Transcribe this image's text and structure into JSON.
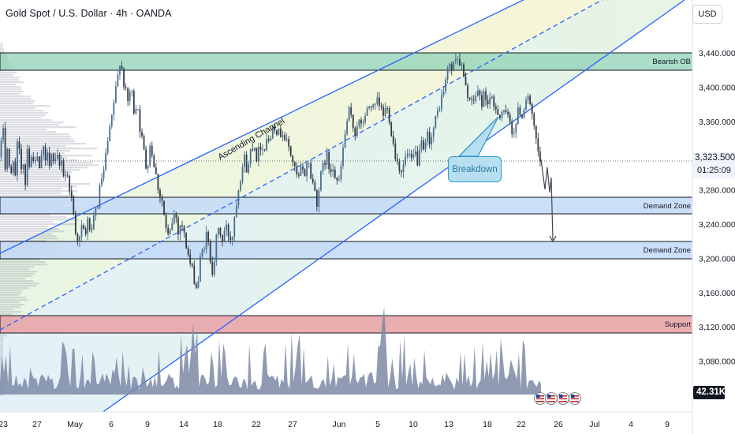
{
  "header": {
    "title": "Gold Spot / U.S. Dollar · 4h · OANDA",
    "currency_button": "USD"
  },
  "price_readout": {
    "last_price": "3,323.500",
    "countdown": "01:25:09",
    "volume_badge": "42.31K"
  },
  "annotations": {
    "channel_label": "Ascending Channel",
    "breakdown_label": "Breakdown",
    "bearish_ob": "Bearish OB",
    "demand_zone_1": "Demand Zone",
    "demand_zone_2": "Demand Zone",
    "support": "Support"
  },
  "colors": {
    "channel_line": "#2962ff",
    "bearish_ob_fill": "#8fd1b5",
    "demand_fill": "#c3d9f7",
    "support_fill": "#e8a5a8",
    "volume_fill": "#7d8aa6",
    "candle_up": "#4a6e8f",
    "candle_down": "#333946"
  },
  "chart_data": {
    "type": "candlestick",
    "symbol": "Gold Spot / U.S. Dollar",
    "interval": "4h",
    "source": "OANDA",
    "y_ticks": [
      3440,
      3400,
      3360,
      3280,
      3240,
      3200,
      3160,
      3120,
      3080
    ],
    "y_tick_labels": [
      "3,440.000",
      "3,400.000",
      "3,360.000",
      "3,280.000",
      "3,240.000",
      "3,200.000",
      "3,160.000",
      "3,120.000",
      "3,080.000"
    ],
    "ylim": [
      3050,
      3475
    ],
    "x_tick_labels": [
      "23",
      "27",
      "May",
      "6",
      "9",
      "14",
      "18",
      "22",
      "27",
      "Jun",
      "5",
      "10",
      "13",
      "18",
      "22",
      "26",
      "Jul",
      "4",
      "9"
    ],
    "zones": [
      {
        "label": "Bearish OB",
        "from": 3418,
        "to": 3440
      },
      {
        "label": "Demand Zone",
        "from": 3263,
        "to": 3282
      },
      {
        "label": "Demand Zone",
        "from": 3211,
        "to": 3231
      },
      {
        "label": "Support",
        "from": 3134,
        "to": 3151
      }
    ],
    "ascending_channel": {
      "lower_line": [
        {
          "date": "2025-04-30",
          "price": 3087
        },
        {
          "date": "2025-06-28",
          "price": 3475
        }
      ],
      "upper_line": [
        {
          "date": "2025-04-30",
          "price": 3203
        },
        {
          "date": "2025-06-18",
          "price": 3475
        }
      ]
    },
    "last_price": 3323.5,
    "countdown": "01:25:09",
    "projected_target": 3233,
    "volume_last": "42.31K",
    "path": [
      [
        0,
        3318
      ],
      [
        4,
        3355
      ],
      [
        7,
        3300
      ],
      [
        10,
        3340
      ],
      [
        13,
        3275
      ],
      [
        16,
        3330
      ],
      [
        19,
        3290
      ],
      [
        23,
        3345
      ],
      [
        26,
        3300
      ],
      [
        29,
        3320
      ],
      [
        32,
        3285
      ],
      [
        35,
        3340
      ],
      [
        38,
        3298
      ],
      [
        41,
        3330
      ],
      [
        44,
        3305
      ],
      [
        47,
        3320
      ],
      [
        50,
        3300
      ],
      [
        54,
        3335
      ],
      [
        57,
        3305
      ],
      [
        60,
        3330
      ],
      [
        63,
        3312
      ],
      [
        66,
        3326
      ],
      [
        69,
        3300
      ],
      [
        72,
        3322
      ],
      [
        75,
        3305
      ],
      [
        78,
        3318
      ],
      [
        81,
        3295
      ],
      [
        84,
        3300
      ],
      [
        88,
        3285
      ],
      [
        92,
        3262
      ],
      [
        96,
        3232
      ],
      [
        100,
        3218
      ],
      [
        104,
        3237
      ],
      [
        108,
        3228
      ],
      [
        112,
        3246
      ],
      [
        116,
        3225
      ],
      [
        120,
        3252
      ],
      [
        124,
        3264
      ],
      [
        128,
        3290
      ],
      [
        132,
        3302
      ],
      [
        136,
        3332
      ],
      [
        140,
        3352
      ],
      [
        144,
        3380
      ],
      [
        148,
        3402
      ],
      [
        152,
        3432
      ],
      [
        155,
        3420
      ],
      [
        158,
        3398
      ],
      [
        162,
        3382
      ],
      [
        166,
        3400
      ],
      [
        170,
        3372
      ],
      [
        174,
        3384
      ],
      [
        178,
        3348
      ],
      [
        182,
        3328
      ],
      [
        186,
        3302
      ],
      [
        190,
        3334
      ],
      [
        194,
        3318
      ],
      [
        198,
        3296
      ],
      [
        202,
        3276
      ],
      [
        206,
        3266
      ],
      [
        210,
        3235
      ],
      [
        214,
        3221
      ],
      [
        218,
        3242
      ],
      [
        222,
        3256
      ],
      [
        226,
        3232
      ],
      [
        230,
        3244
      ],
      [
        234,
        3224
      ],
      [
        238,
        3207
      ],
      [
        242,
        3190
      ],
      [
        246,
        3178
      ],
      [
        250,
        3162
      ],
      [
        254,
        3198
      ],
      [
        258,
        3212
      ],
      [
        262,
        3228
      ],
      [
        266,
        3204
      ],
      [
        270,
        3184
      ],
      [
        274,
        3220
      ],
      [
        278,
        3236
      ],
      [
        282,
        3220
      ],
      [
        286,
        3238
      ],
      [
        290,
        3227
      ],
      [
        294,
        3222
      ],
      [
        298,
        3255
      ],
      [
        302,
        3282
      ],
      [
        306,
        3302
      ],
      [
        310,
        3317
      ],
      [
        314,
        3300
      ],
      [
        318,
        3328
      ],
      [
        322,
        3336
      ],
      [
        326,
        3316
      ],
      [
        330,
        3334
      ],
      [
        334,
        3326
      ],
      [
        338,
        3342
      ],
      [
        342,
        3332
      ],
      [
        346,
        3362
      ],
      [
        350,
        3352
      ],
      [
        354,
        3344
      ],
      [
        358,
        3350
      ],
      [
        362,
        3337
      ],
      [
        366,
        3330
      ],
      [
        370,
        3318
      ],
      [
        374,
        3302
      ],
      [
        378,
        3290
      ],
      [
        382,
        3305
      ],
      [
        386,
        3296
      ],
      [
        390,
        3318
      ],
      [
        394,
        3297
      ],
      [
        398,
        3284
      ],
      [
        402,
        3266
      ],
      [
        406,
        3292
      ],
      [
        410,
        3308
      ],
      [
        414,
        3321
      ],
      [
        418,
        3302
      ],
      [
        422,
        3311
      ],
      [
        426,
        3293
      ],
      [
        430,
        3287
      ],
      [
        434,
        3320
      ],
      [
        438,
        3348
      ],
      [
        442,
        3372
      ],
      [
        446,
        3360
      ],
      [
        450,
        3346
      ],
      [
        454,
        3362
      ],
      [
        458,
        3352
      ],
      [
        462,
        3366
      ],
      [
        466,
        3372
      ],
      [
        470,
        3382
      ],
      [
        474,
        3372
      ],
      [
        478,
        3382
      ],
      [
        482,
        3376
      ],
      [
        486,
        3368
      ],
      [
        490,
        3377
      ],
      [
        494,
        3364
      ],
      [
        498,
        3337
      ],
      [
        502,
        3318
      ],
      [
        506,
        3308
      ],
      [
        510,
        3302
      ],
      [
        514,
        3317
      ],
      [
        518,
        3322
      ],
      [
        522,
        3310
      ],
      [
        526,
        3324
      ],
      [
        530,
        3312
      ],
      [
        534,
        3332
      ],
      [
        538,
        3322
      ],
      [
        542,
        3344
      ],
      [
        546,
        3337
      ],
      [
        550,
        3352
      ],
      [
        554,
        3367
      ],
      [
        558,
        3382
      ],
      [
        562,
        3394
      ],
      [
        566,
        3412
      ],
      [
        570,
        3428
      ],
      [
        574,
        3418
      ],
      [
        578,
        3440
      ],
      [
        582,
        3430
      ],
      [
        586,
        3422
      ],
      [
        590,
        3398
      ],
      [
        594,
        3392
      ],
      [
        598,
        3378
      ],
      [
        602,
        3388
      ],
      [
        606,
        3396
      ],
      [
        610,
        3380
      ],
      [
        614,
        3392
      ],
      [
        618,
        3382
      ],
      [
        622,
        3388
      ],
      [
        626,
        3374
      ],
      [
        630,
        3377
      ],
      [
        634,
        3366
      ],
      [
        638,
        3376
      ],
      [
        642,
        3364
      ],
      [
        646,
        3362
      ],
      [
        650,
        3347
      ],
      [
        654,
        3356
      ],
      [
        658,
        3376
      ],
      [
        662,
        3366
      ],
      [
        666,
        3386
      ],
      [
        670,
        3392
      ],
      [
        674,
        3366
      ],
      [
        678,
        3346
      ],
      [
        682,
        3324
      ],
      [
        686,
        3306
      ],
      [
        690,
        3300
      ],
      [
        693,
        3323
      ]
    ]
  }
}
